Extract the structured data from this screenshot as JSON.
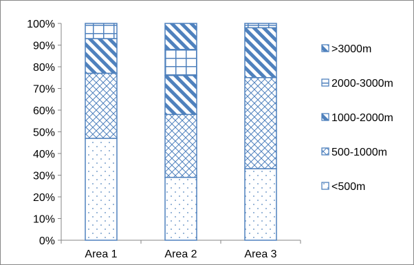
{
  "chart_data": {
    "type": "bar",
    "stacked": true,
    "percent": true,
    "categories": [
      "Area 1",
      "Area 2",
      "Area 3"
    ],
    "series": [
      {
        "name": "<500m",
        "values": [
          47,
          29,
          33
        ],
        "pattern": "dots"
      },
      {
        "name": "500-1000m",
        "values": [
          30,
          29,
          42
        ],
        "pattern": "crosshatch"
      },
      {
        "name": "1000-2000m",
        "values": [
          16,
          18,
          23
        ],
        "pattern": "diagonal"
      },
      {
        "name": "2000-3000m",
        "values": [
          7,
          12,
          2
        ],
        "pattern": "grid"
      },
      {
        "name": ">3000m",
        "values": [
          0,
          12,
          0
        ],
        "pattern": "diagonal"
      }
    ],
    "yticks": [
      "0%",
      "10%",
      "20%",
      "30%",
      "40%",
      "50%",
      "60%",
      "70%",
      "80%",
      "90%",
      "100%"
    ],
    "ylim": [
      0,
      100
    ],
    "legend": {
      "position": "right",
      "entries": [
        ">3000m",
        "2000-3000m",
        "1000-2000m",
        "500-1000m",
        "<500m"
      ]
    },
    "grid": false,
    "colors": {
      "stroke": "#4f81bd",
      "fill": "#ffffff",
      "axis": "#868686"
    }
  }
}
